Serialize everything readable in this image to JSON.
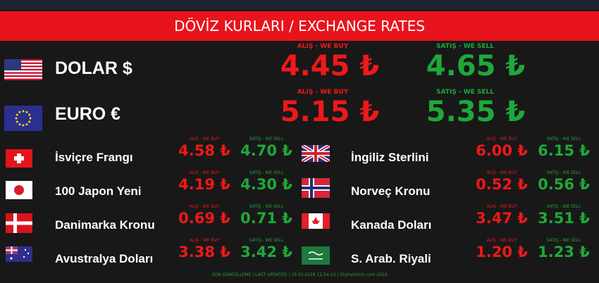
{
  "header": {
    "title": "DÖVİZ KURLARI / EXCHANGE RATES"
  },
  "labels": {
    "buy": "ALIŞ - WE BUY",
    "sell": "SATIŞ - WE SELL"
  },
  "main": [
    {
      "name": "DOLAR $",
      "buy": "4.45 ₺",
      "sell": "4.65 ₺"
    },
    {
      "name": "EURO €",
      "buy": "5.15 ₺",
      "sell": "5.35 ₺"
    }
  ],
  "left": [
    {
      "name": "İsviçre Frangı",
      "buy": "4.58 ₺",
      "sell": "4.70 ₺"
    },
    {
      "name": "100 Japon Yeni",
      "buy": "4.19 ₺",
      "sell": "4.30 ₺"
    },
    {
      "name": "Danimarka Kronu",
      "buy": "0.69 ₺",
      "sell": "0.71 ₺"
    },
    {
      "name": "Avustralya Doları",
      "buy": "3.38 ₺",
      "sell": "3.42 ₺"
    }
  ],
  "right": [
    {
      "name": "İngiliz Sterlini",
      "buy": "6.00 ₺",
      "sell": "6.15 ₺"
    },
    {
      "name": "Norveç Kronu",
      "buy": "0.52 ₺",
      "sell": "0.56 ₺"
    },
    {
      "name": "Kanada Doları",
      "buy": "3.47 ₺",
      "sell": "3.51 ₺"
    },
    {
      "name": "S. Arab. Riyali",
      "buy": "1.20 ₺",
      "sell": "1.23 ₺"
    }
  ],
  "footer": "SON GÜNCELLEME | LAST UPDATED | 29.05.2018 12:54:20 | DigitalVitrin.com 2018"
}
